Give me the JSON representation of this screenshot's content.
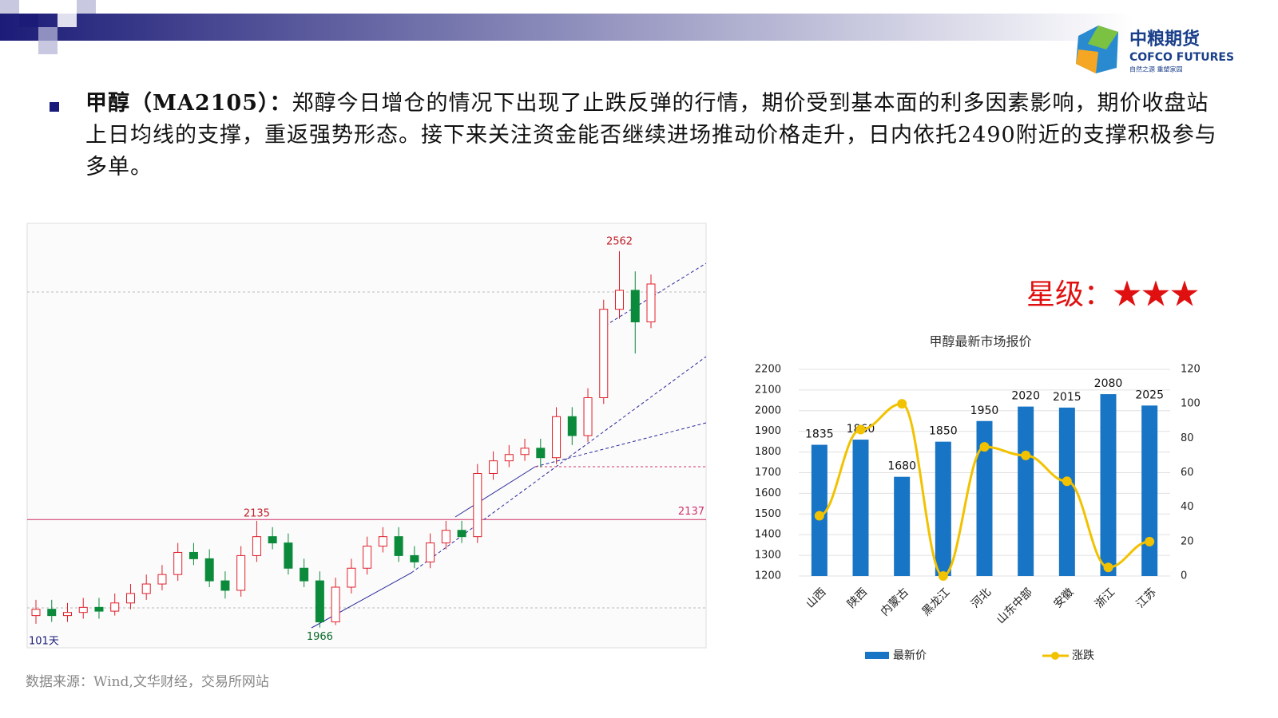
{
  "slide": {
    "prefix": "甲醇（MA2105）：",
    "body": "郑醇今日增仓的情况下出现了止跌反弹的行情，期价受到基本面的利多因素影响，期价收盘站上日均线的支撑，重返强势形态。接下来关注资金能否继续进场推动价格走升，日内依托2490附近的支撑积极参与多单。",
    "rating": "星级：★★★",
    "source": "数据来源：Wind,文华财经，交易所网站",
    "logo_cn": "中粮期货",
    "logo_en": "COFCO FUTURES",
    "logo_slogan": "自然之源 重塑家园"
  },
  "chart_data": [
    {
      "type": "candlestick",
      "period_label": "101天",
      "up_color": "#e0202a",
      "down_color": "#0a8a3a",
      "ylim": [
        1934,
        2606
      ],
      "hline": 2137,
      "hline_color": "#d0306a",
      "open": [
        1985,
        1995,
        1985,
        1990,
        1998,
        1992,
        2005,
        2020,
        2035,
        2050,
        2085,
        2075,
        2040,
        2025,
        2080,
        2110,
        2100,
        2060,
        2040,
        1975,
        2030,
        2060,
        2095,
        2110,
        2080,
        2070,
        2100,
        2120,
        2110,
        2210,
        2230,
        2240,
        2250,
        2235,
        2300,
        2270,
        2330,
        2470,
        2500,
        2450
      ],
      "high": [
        2010,
        2010,
        2005,
        2013,
        2013,
        2020,
        2035,
        2050,
        2065,
        2100,
        2100,
        2090,
        2055,
        2095,
        2135,
        2125,
        2115,
        2075,
        2055,
        2045,
        2075,
        2110,
        2125,
        2125,
        2095,
        2115,
        2135,
        2135,
        2225,
        2245,
        2255,
        2265,
        2265,
        2315,
        2315,
        2345,
        2485,
        2562,
        2530,
        2525
      ],
      "low": [
        1972,
        1975,
        1975,
        1980,
        1980,
        1985,
        1995,
        2010,
        2025,
        2040,
        2065,
        2030,
        2012,
        2015,
        2070,
        2090,
        2050,
        2030,
        1966,
        1970,
        2020,
        2050,
        2085,
        2070,
        2060,
        2060,
        2090,
        2100,
        2100,
        2200,
        2220,
        2230,
        2220,
        2225,
        2255,
        2260,
        2320,
        2455,
        2400,
        2440
      ],
      "close": [
        1995,
        1985,
        1990,
        1998,
        1992,
        2005,
        2020,
        2035,
        2050,
        2085,
        2075,
        2040,
        2025,
        2080,
        2110,
        2100,
        2060,
        2040,
        1975,
        2030,
        2060,
        2095,
        2110,
        2080,
        2070,
        2100,
        2120,
        2110,
        2210,
        2230,
        2240,
        2250,
        2235,
        2300,
        2270,
        2330,
        2470,
        2500,
        2450,
        2510
      ]
    },
    {
      "type": "bar_line",
      "title": "甲醇最新市场报价",
      "categories": [
        "山西",
        "陕西",
        "内蒙古",
        "黑龙江",
        "河北",
        "山东中部",
        "安徽",
        "浙江",
        "江苏"
      ],
      "series": [
        {
          "name": "最新价",
          "color": "#1874c4",
          "values": [
            1835,
            1860,
            1680,
            1850,
            1950,
            2020,
            2015,
            2080,
            2025
          ]
        },
        {
          "name": "涨跌",
          "color": "#f2c200",
          "axis": "y2",
          "values": [
            35,
            85,
            100,
            0,
            75,
            70,
            55,
            5,
            20
          ]
        }
      ],
      "ylim": [
        1200,
        2200
      ],
      "yticks": [
        1200,
        1300,
        1400,
        1500,
        1600,
        1700,
        1800,
        1900,
        2000,
        2100,
        2200
      ],
      "y2lim": [
        0,
        120
      ],
      "y2ticks": [
        0,
        20,
        40,
        60,
        80,
        100,
        120
      ],
      "legend": "bottom"
    }
  ]
}
